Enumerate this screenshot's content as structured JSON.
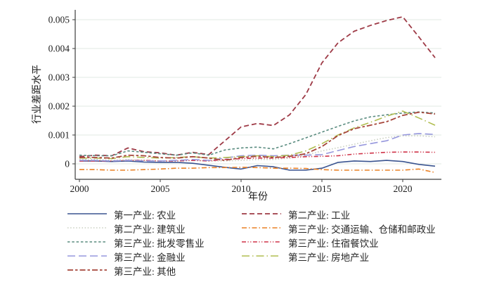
{
  "chart_data": {
    "type": "line",
    "title": "",
    "ylabel": "行业差距水平",
    "xlabel": "年份",
    "x": [
      2000,
      2001,
      2002,
      2003,
      2004,
      2005,
      2006,
      2007,
      2008,
      2009,
      2010,
      2011,
      2012,
      2013,
      2014,
      2015,
      2016,
      2017,
      2018,
      2019,
      2020,
      2021,
      2022
    ],
    "x_ticks": [
      2000,
      2005,
      2010,
      2015,
      2020
    ],
    "y_ticks": [
      0,
      0.001,
      0.002,
      0.003,
      0.004,
      0.005
    ],
    "y_tick_labels": [
      "0",
      "0.001",
      "0.002",
      "0.003",
      "0.004",
      "0.005"
    ],
    "xlim": [
      2000,
      2022.4
    ],
    "ylim": [
      -0.00055,
      0.0053
    ],
    "grid": "horizontal-light",
    "legend_position": "bottom, 2 columns, row-major",
    "series": [
      {
        "key": "primary-agriculture",
        "name": "第一产业: 农业",
        "color": "#3a5490",
        "dash": "solid",
        "width": 1.6,
        "values": [
          0.0001,
          0.0001,
          8e-05,
          0.0001,
          6e-05,
          5e-05,
          5e-05,
          2e-05,
          -5e-05,
          -0.00012,
          -0.00018,
          -6e-05,
          -0.0001,
          -0.00022,
          -0.00022,
          -0.00015,
          5e-05,
          0.0001,
          8e-05,
          0.00012,
          8e-05,
          -2e-05,
          -8e-05
        ]
      },
      {
        "key": "secondary-industry",
        "name": "第二产业: 工业",
        "color": "#9e3a46",
        "dash": "dash",
        "width": 1.8,
        "values": [
          0.00025,
          0.0003,
          0.00028,
          0.00055,
          0.00042,
          0.00038,
          0.0003,
          0.0004,
          0.00032,
          0.0008,
          0.00128,
          0.0014,
          0.00133,
          0.0017,
          0.0024,
          0.0035,
          0.0042,
          0.0046,
          0.0048,
          0.00497,
          0.0051,
          0.0044,
          0.00368
        ]
      },
      {
        "key": "secondary-construction",
        "name": "第二产业: 建筑业",
        "color": "#c9cfc0",
        "dash": "dot",
        "width": 1.6,
        "values": [
          0.00015,
          0.00015,
          0.00012,
          0.00015,
          0.00012,
          0.0001,
          0.0001,
          0.00012,
          0.0001,
          0.0001,
          0.00012,
          0.00015,
          0.00015,
          0.0002,
          0.0003,
          0.00045,
          0.00056,
          0.00068,
          0.0008,
          0.00091,
          0.00097,
          0.00097,
          0.00094
        ]
      },
      {
        "key": "tertiary-transport-storage-postal",
        "name": "第三产业: 交通运输、仓储和邮政业",
        "color": "#ea8023",
        "dash": "dash-dot",
        "width": 1.6,
        "values": [
          -0.0002,
          -0.0002,
          -0.00022,
          -0.00022,
          -0.0002,
          -0.00018,
          -0.00015,
          -0.00015,
          -0.00013,
          -0.00013,
          -0.00012,
          -0.00013,
          -0.00015,
          -0.00015,
          -0.00016,
          -0.0002,
          -0.00022,
          -0.00022,
          -0.00022,
          -0.00022,
          -0.00022,
          -0.00018,
          -0.0003
        ]
      },
      {
        "key": "tertiary-wholesale-retail",
        "name": "第三产业: 批发零售业",
        "color": "#598b7f",
        "dash": "short-dash",
        "width": 1.6,
        "values": [
          0.0003,
          0.00028,
          0.00028,
          0.00045,
          0.0004,
          0.00035,
          0.0003,
          0.00038,
          0.0003,
          0.00048,
          0.00055,
          0.00058,
          0.00052,
          0.0007,
          0.0009,
          0.0011,
          0.0013,
          0.00149,
          0.00163,
          0.0017,
          0.00176,
          0.0018,
          0.00176
        ]
      },
      {
        "key": "tertiary-accommodation-catering",
        "name": "第三产业: 住宿餐饮业",
        "color": "#cf3349",
        "dash": "dash-dot-dot",
        "width": 1.6,
        "values": [
          0.0001,
          0.0001,
          0.0001,
          0.00012,
          0.00012,
          0.0001,
          0.0001,
          0.00012,
          0.0001,
          0.00015,
          0.00018,
          0.0002,
          0.0002,
          0.00022,
          0.00025,
          0.00026,
          0.00028,
          0.00034,
          0.00037,
          0.0004,
          0.00041,
          0.00041,
          0.0004
        ]
      },
      {
        "key": "tertiary-finance",
        "name": "第三产业: 金融业",
        "color": "#9697dd",
        "dash": "long-dash",
        "width": 1.6,
        "values": [
          0.00012,
          0.00012,
          0.0001,
          0.00012,
          0.0001,
          0.0001,
          0.00012,
          0.00015,
          0.00012,
          0.0002,
          0.00028,
          0.0003,
          0.00028,
          0.0003,
          0.0003,
          0.00032,
          0.00046,
          0.0006,
          0.0007,
          0.0008,
          0.001,
          0.00105,
          0.00102
        ]
      },
      {
        "key": "tertiary-real-estate",
        "name": "第三产业: 房地产业",
        "color": "#b0bd50",
        "dash": "long-dash-dot",
        "width": 1.6,
        "values": [
          0.0002,
          0.0002,
          0.00018,
          0.00025,
          0.00022,
          0.0002,
          0.00022,
          0.00025,
          0.0002,
          0.00022,
          0.00025,
          0.00028,
          0.00025,
          0.0003,
          0.00045,
          0.0007,
          0.001,
          0.00125,
          0.00144,
          0.00165,
          0.00183,
          0.00159,
          0.00134
        ]
      },
      {
        "key": "tertiary-other",
        "name": "第三产业: 其他",
        "color": "#a6453a",
        "dash": "dash-dash-dot",
        "width": 1.8,
        "values": [
          0.00022,
          0.00022,
          0.0002,
          0.0003,
          0.00028,
          0.00022,
          0.0002,
          0.00025,
          0.0002,
          0.00012,
          0.00022,
          0.00026,
          0.00022,
          0.00026,
          0.00035,
          0.0006,
          0.00098,
          0.00122,
          0.00134,
          0.00146,
          0.00168,
          0.00179,
          0.00173
        ]
      }
    ]
  }
}
